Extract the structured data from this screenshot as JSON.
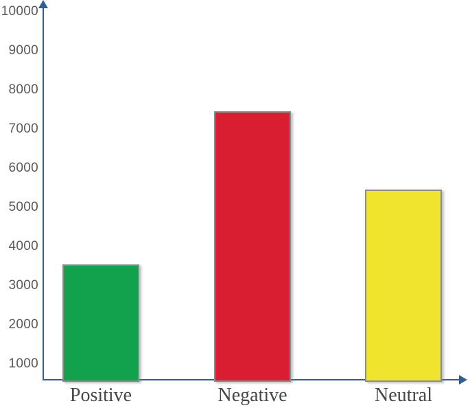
{
  "chart_data": {
    "type": "bar",
    "title": "",
    "xlabel": "",
    "ylabel": "",
    "categories": [
      "Positive",
      "Negative",
      "Neutral"
    ],
    "values": [
      3550,
      7450,
      5450
    ],
    "bar_colors": [
      "#12a14d",
      "#d91e32",
      "#f0e42f"
    ],
    "ylim": [
      0,
      10000
    ],
    "yticks": [
      1000,
      2000,
      3000,
      4000,
      5000,
      6000,
      7000,
      8000,
      9000,
      10000
    ],
    "grid": false,
    "legend": false,
    "axis_color": "#2f5e98",
    "tick_label_color": "#595959",
    "category_label_color": "#474747",
    "bar_border_color": "#8c8c8c"
  }
}
